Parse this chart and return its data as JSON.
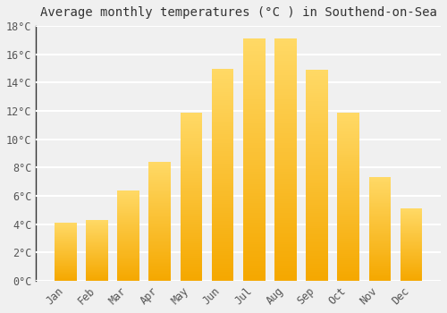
{
  "title": "Average monthly temperatures (°C ) in Southend-on-Sea",
  "months": [
    "Jan",
    "Feb",
    "Mar",
    "Apr",
    "May",
    "Jun",
    "Jul",
    "Aug",
    "Sep",
    "Oct",
    "Nov",
    "Dec"
  ],
  "values": [
    4.1,
    4.3,
    6.4,
    8.4,
    11.9,
    15.0,
    17.1,
    17.1,
    14.9,
    11.9,
    7.3,
    5.1
  ],
  "bar_color_bottom": "#F5A800",
  "bar_color_top": "#FFD966",
  "background_color": "#f0f0f0",
  "grid_color": "#ffffff",
  "ylim": [
    0,
    18
  ],
  "ytick_step": 2,
  "title_fontsize": 10,
  "tick_fontsize": 8.5,
  "tick_font_family": "monospace",
  "bar_width": 0.7,
  "left_spine_color": "#333333"
}
